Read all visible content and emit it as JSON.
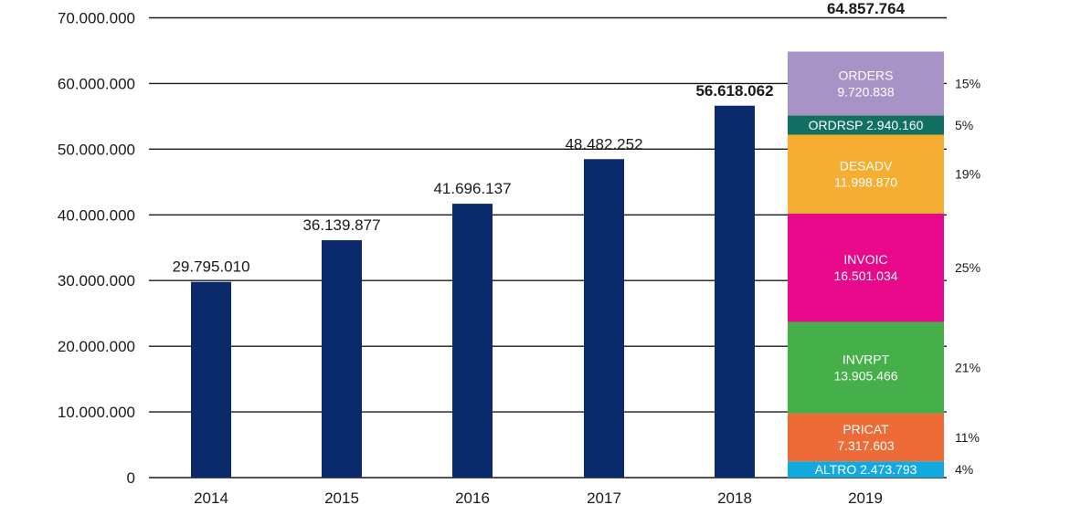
{
  "chart_data": {
    "type": "bar",
    "title": "",
    "xlabel": "",
    "ylabel": "",
    "ylim": [
      0,
      70000000
    ],
    "yticks": [
      {
        "value": 0,
        "label": "0"
      },
      {
        "value": 10000000,
        "label": "10.000.000"
      },
      {
        "value": 20000000,
        "label": "20.000.000"
      },
      {
        "value": 30000000,
        "label": "30.000.000"
      },
      {
        "value": 40000000,
        "label": "40.000.000"
      },
      {
        "value": 50000000,
        "label": "50.000.000"
      },
      {
        "value": 60000000,
        "label": "60.000.000"
      },
      {
        "value": 70000000,
        "label": "70.000.000"
      }
    ],
    "grid": true,
    "bar_color": "#0b2a6b",
    "categories": [
      "2014",
      "2015",
      "2016",
      "2017",
      "2018",
      "2019"
    ],
    "bars": [
      {
        "year": "2014",
        "value": 29795010,
        "label": "29.795.010"
      },
      {
        "year": "2015",
        "value": 36139877,
        "label": "36.139.877"
      },
      {
        "year": "2016",
        "value": 41696137,
        "label": "41.696.137"
      },
      {
        "year": "2017",
        "value": 48482252,
        "label": "48.482.252"
      },
      {
        "year": "2018",
        "value": 56618062,
        "label": "56.618.062"
      }
    ],
    "stacked_bar": {
      "year": "2019",
      "total": 64857764,
      "total_label": "64.857.764",
      "segments": [
        {
          "name": "ALTRO",
          "value": 2473793,
          "value_label": "2.473.793",
          "percent": "4%",
          "color": "#12a8e0",
          "inline": true
        },
        {
          "name": "PRICAT",
          "value": 7317603,
          "value_label": "7.317.603",
          "percent": "11%",
          "color": "#ee6a36",
          "inline": false
        },
        {
          "name": "INVRPT",
          "value": 13905466,
          "value_label": "13.905.466",
          "percent": "21%",
          "color": "#45b04a",
          "inline": false
        },
        {
          "name": "INVOIC",
          "value": 16501034,
          "value_label": "16.501.034",
          "percent": "25%",
          "color": "#e8098a",
          "inline": false
        },
        {
          "name": "DESADV",
          "value": 11998870,
          "value_label": "11.998.870",
          "percent": "19%",
          "color": "#f5ad32",
          "inline": false
        },
        {
          "name": "ORDRSP",
          "value": 2940160,
          "value_label": "2.940.160",
          "percent": "5%",
          "color": "#127062",
          "inline": true
        },
        {
          "name": "ORDERS",
          "value": 9720838,
          "value_label": "9.720.838",
          "percent": "15%",
          "color": "#a893c6",
          "inline": false
        }
      ]
    }
  }
}
